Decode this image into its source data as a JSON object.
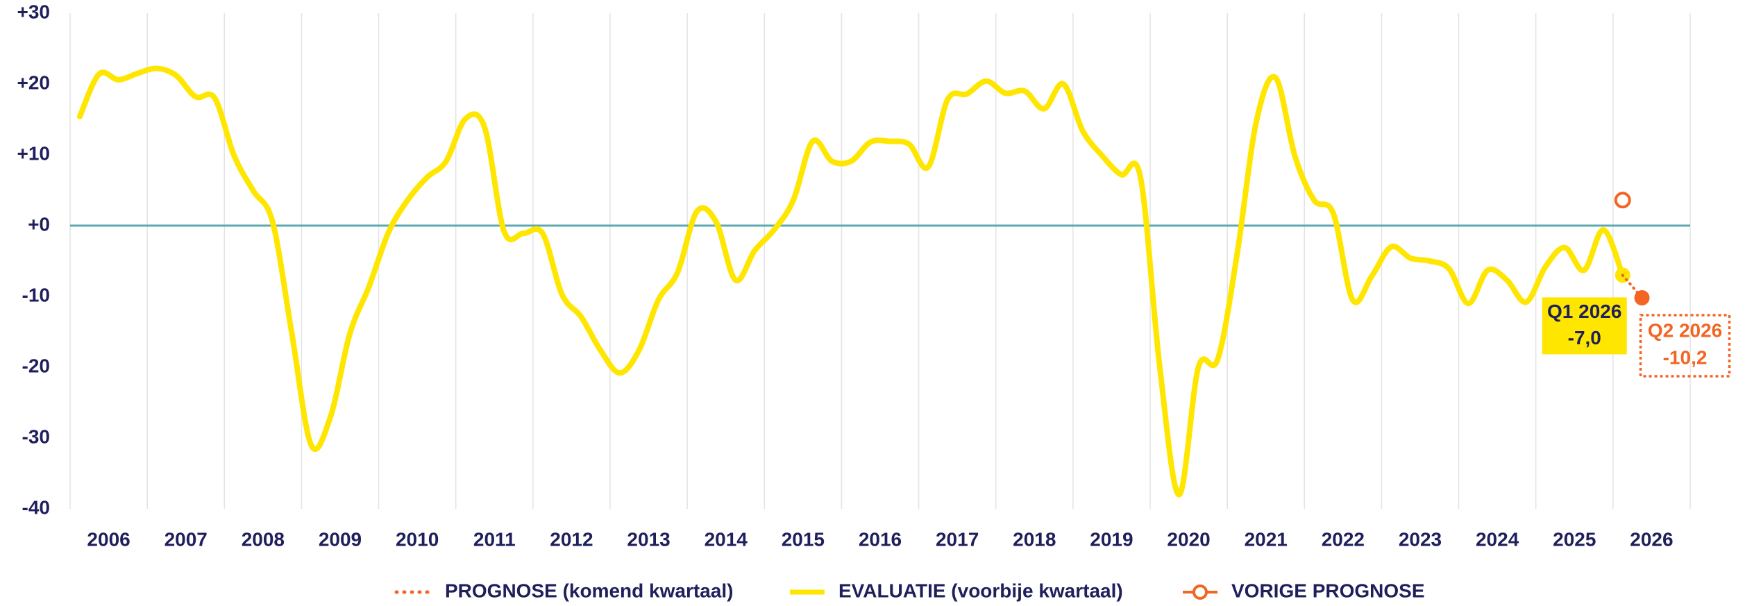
{
  "chart_data": {
    "type": "line",
    "xlim": [
      2006,
      2027
    ],
    "xticks": [
      {
        "value": 2006.5,
        "label": "2006"
      },
      {
        "value": 2007.5,
        "label": "2007"
      },
      {
        "value": 2008.5,
        "label": "2008"
      },
      {
        "value": 2009.5,
        "label": "2009"
      },
      {
        "value": 2010.5,
        "label": "2010"
      },
      {
        "value": 2011.5,
        "label": "2011"
      },
      {
        "value": 2012.5,
        "label": "2012"
      },
      {
        "value": 2013.5,
        "label": "2013"
      },
      {
        "value": 2014.5,
        "label": "2014"
      },
      {
        "value": 2015.5,
        "label": "2015"
      },
      {
        "value": 2016.5,
        "label": "2016"
      },
      {
        "value": 2017.5,
        "label": "2017"
      },
      {
        "value": 2018.5,
        "label": "2018"
      },
      {
        "value": 2019.5,
        "label": "2019"
      },
      {
        "value": 2020.5,
        "label": "2020"
      },
      {
        "value": 2021.5,
        "label": "2021"
      },
      {
        "value": 2022.5,
        "label": "2022"
      },
      {
        "value": 2023.5,
        "label": "2023"
      },
      {
        "value": 2024.5,
        "label": "2024"
      },
      {
        "value": 2025.5,
        "label": "2025"
      },
      {
        "value": 2026.5,
        "label": "2026"
      }
    ],
    "ylim": [
      -40,
      30
    ],
    "yticks": [
      {
        "value": 30,
        "label": "+30"
      },
      {
        "value": 20,
        "label": "+20"
      },
      {
        "value": 10,
        "label": "+10"
      },
      {
        "value": 0,
        "label": "+0"
      },
      -10,
      -20,
      -30,
      -40
    ],
    "grid": "x",
    "zero_line_color": "#5ba8b0",
    "x": [
      2006.125,
      2006.375,
      2006.625,
      2006.875,
      2007.125,
      2007.375,
      2007.625,
      2007.875,
      2008.125,
      2008.375,
      2008.625,
      2008.875,
      2009.125,
      2009.375,
      2009.625,
      2009.875,
      2010.125,
      2010.375,
      2010.625,
      2010.875,
      2011.125,
      2011.375,
      2011.625,
      2011.875,
      2012.125,
      2012.375,
      2012.625,
      2012.875,
      2013.125,
      2013.375,
      2013.625,
      2013.875,
      2014.125,
      2014.375,
      2014.625,
      2014.875,
      2015.125,
      2015.375,
      2015.625,
      2015.875,
      2016.125,
      2016.375,
      2016.625,
      2016.875,
      2017.125,
      2017.375,
      2017.625,
      2017.875,
      2018.125,
      2018.375,
      2018.625,
      2018.875,
      2019.125,
      2019.375,
      2019.625,
      2019.875,
      2020.125,
      2020.375,
      2020.625,
      2020.875,
      2021.125,
      2021.375,
      2021.625,
      2021.875,
      2022.125,
      2022.375,
      2022.625,
      2022.875,
      2023.125,
      2023.375,
      2023.625,
      2023.875,
      2024.125,
      2024.375,
      2024.625,
      2024.875,
      2025.125,
      2025.375,
      2025.625,
      2025.875,
      2026.125,
      2026.375
    ],
    "series": [
      {
        "name": "PROGNOSE (komend kwartaal)",
        "color": "#f26522",
        "style": "dotted",
        "marker": "last",
        "values": [
          null,
          null,
          null,
          null,
          null,
          null,
          null,
          null,
          null,
          null,
          null,
          null,
          null,
          null,
          null,
          null,
          null,
          null,
          null,
          null,
          null,
          null,
          null,
          null,
          null,
          null,
          null,
          null,
          null,
          null,
          null,
          null,
          null,
          null,
          null,
          null,
          null,
          null,
          null,
          null,
          null,
          null,
          null,
          null,
          null,
          null,
          null,
          null,
          null,
          null,
          null,
          null,
          null,
          null,
          null,
          null,
          null,
          null,
          null,
          null,
          null,
          null,
          null,
          null,
          null,
          null,
          null,
          null,
          null,
          null,
          null,
          null,
          null,
          null,
          null,
          null,
          null,
          null,
          null,
          null,
          -7.0,
          -10.2
        ]
      },
      {
        "name": "EVALUATIE (voorbije kwartaal)",
        "color": "#ffe600",
        "style": "solid",
        "marker": "last",
        "values": [
          15.4,
          21.4,
          20.6,
          21.5,
          22.2,
          21.2,
          18.2,
          18.0,
          9.9,
          4.9,
          0.5,
          -15.3,
          -31.0,
          -27.0,
          -15.3,
          -8.6,
          -1.0,
          3.6,
          6.8,
          9.1,
          15.1,
          13.8,
          -0.8,
          -1.1,
          -1.1,
          -9.7,
          -12.9,
          -17.6,
          -20.8,
          -17.6,
          -10.5,
          -6.6,
          2.0,
          0.5,
          -7.7,
          -3.5,
          -0.6,
          3.6,
          11.9,
          9.1,
          9.1,
          11.8,
          11.9,
          11.5,
          8.3,
          17.8,
          18.6,
          20.4,
          18.7,
          19.0,
          16.5,
          20.0,
          13.4,
          9.9,
          7.2,
          6.8,
          -20.0,
          -38.0,
          -20.0,
          -18.9,
          -4.2,
          14.6,
          20.9,
          9.9,
          3.6,
          1.7,
          -10.5,
          -7.1,
          -3.0,
          -4.6,
          -5.0,
          -6.1,
          -11.0,
          -6.3,
          -7.7,
          -10.8,
          -5.8,
          -3.1,
          -6.3,
          -0.6,
          -7.0,
          null
        ]
      },
      {
        "name": "VORIGE PROGNOSE",
        "color": "#f26522",
        "style": "none",
        "marker": "open",
        "values": [
          null,
          null,
          null,
          null,
          null,
          null,
          null,
          null,
          null,
          null,
          null,
          null,
          null,
          null,
          null,
          null,
          null,
          null,
          null,
          null,
          null,
          null,
          null,
          null,
          null,
          null,
          null,
          null,
          null,
          null,
          null,
          null,
          null,
          null,
          null,
          null,
          null,
          null,
          null,
          null,
          null,
          null,
          null,
          null,
          null,
          null,
          null,
          null,
          null,
          null,
          null,
          null,
          null,
          null,
          null,
          null,
          null,
          null,
          null,
          null,
          null,
          null,
          null,
          null,
          null,
          null,
          null,
          null,
          null,
          null,
          null,
          null,
          null,
          null,
          null,
          null,
          null,
          null,
          null,
          null,
          3.6,
          null
        ]
      }
    ],
    "annotations": [
      {
        "period": "Q1 2026",
        "label": "-7,0"
      },
      {
        "period": "Q2 2026",
        "label": "-10,2"
      }
    ]
  }
}
